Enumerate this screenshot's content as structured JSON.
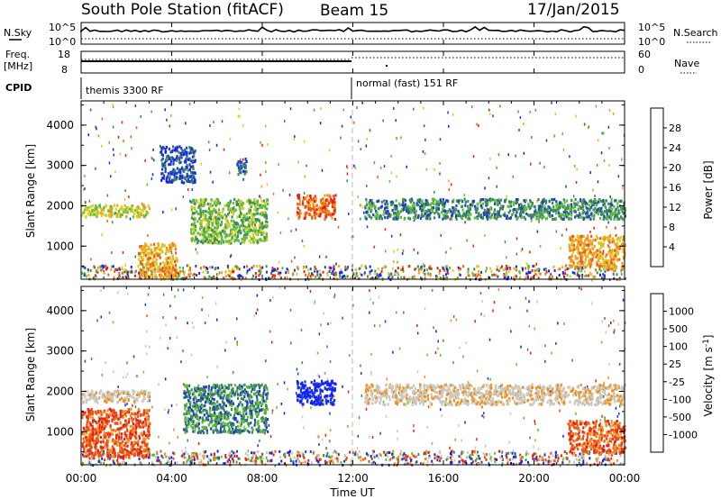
{
  "header": {
    "station": "South Pole Station (fitACF)",
    "beam": "Beam 15",
    "date": "17/Jan/2015"
  },
  "summary_panels": {
    "nsky_label": "N.Sky",
    "nsky_ticks": [
      "10^5",
      "10^0"
    ],
    "nsearch_label": "N.Search",
    "nsearch_ticks": [
      "10^5",
      "10^0"
    ],
    "freq_label_1": "Freq.",
    "freq_label_2": "[MHz]",
    "freq_ticks": [
      "18",
      "8"
    ],
    "nave_label": "Nave",
    "nave_ticks": [
      "60",
      "0"
    ],
    "cpid_label": "CPID",
    "cpid_mode_1": "themis 3300 RF",
    "cpid_mode_2": "normal (fast) 151 RF"
  },
  "chart_data": [
    {
      "type": "heatmap",
      "ylabel": "Slant Range [km]",
      "yticks": [
        "1000",
        "2000",
        "3000",
        "4000"
      ],
      "ylim": [
        180,
        4600
      ],
      "colorbar_label": "Power [dB]",
      "colorbar_ticks": [
        "4",
        "8",
        "12",
        "16",
        "20",
        "24",
        "28"
      ],
      "colorbar_colors": [
        "#1020ff",
        "#2040c0",
        "#3c8a5a",
        "#5fbf3a",
        "#d8d020",
        "#f0a020",
        "#f06010",
        "#e82010"
      ],
      "regions": [
        {
          "t0": 0.0,
          "t1": 3.0,
          "r0": 1750,
          "r1": 2050,
          "level": 4
        },
        {
          "t0": 2.5,
          "t1": 4.2,
          "r0": 250,
          "r1": 1100,
          "level": 5
        },
        {
          "t0": 3.5,
          "t1": 5.0,
          "r0": 2600,
          "r1": 3500,
          "level": 1
        },
        {
          "t0": 4.8,
          "t1": 8.2,
          "r0": 1100,
          "r1": 2200,
          "level": 3
        },
        {
          "t0": 6.8,
          "t1": 7.3,
          "r0": 2800,
          "r1": 3200,
          "level": 1
        },
        {
          "t0": 9.5,
          "t1": 11.2,
          "r0": 1700,
          "r1": 2300,
          "level": 6
        },
        {
          "t0": 12.5,
          "t1": 24.0,
          "r0": 1700,
          "r1": 2200,
          "level": 2
        },
        {
          "t0": 21.5,
          "t1": 24.0,
          "r0": 500,
          "r1": 1300,
          "level": 5
        }
      ]
    },
    {
      "type": "heatmap",
      "ylabel": "Slant Range [km]",
      "yticks": [
        "1000",
        "2000",
        "3000",
        "4000"
      ],
      "ylim": [
        180,
        4600
      ],
      "colorbar_label": "Velocity [m s",
      "colorbar_label_sup": "-1",
      "colorbar_label_end": "]",
      "colorbar_ticks": [
        "-1000",
        "-500",
        "-100",
        "-25",
        "25",
        "100",
        "500",
        "1000"
      ],
      "colorbar_colors": [
        "#e82010",
        "#f05010",
        "#f09020",
        "#c8c8c0",
        "#c8c8c0",
        "#60c030",
        "#3c8a5a",
        "#2040c0",
        "#1020ff"
      ],
      "regions": [
        {
          "t0": 0.0,
          "t1": 3.0,
          "r0": 1750,
          "r1": 2050,
          "level": 3
        },
        {
          "t0": 0.0,
          "t1": 3.0,
          "r0": 400,
          "r1": 1600,
          "level": 1
        },
        {
          "t0": 4.5,
          "t1": 8.2,
          "r0": 1000,
          "r1": 2200,
          "level": 6
        },
        {
          "t0": 9.5,
          "t1": 11.2,
          "r0": 1700,
          "r1": 2300,
          "level": 8
        },
        {
          "t0": 12.5,
          "t1": 24.0,
          "r0": 1700,
          "r1": 2200,
          "level": 3
        },
        {
          "t0": 21.5,
          "t1": 24.0,
          "r0": 500,
          "r1": 1300,
          "level": 1
        }
      ]
    }
  ],
  "x_axis": {
    "xlabel": "Time UT",
    "xticks": [
      "00:00",
      "04:00",
      "08:00",
      "12:00",
      "16:00",
      "20:00",
      "00:00"
    ],
    "xlim": [
      0,
      24
    ]
  }
}
